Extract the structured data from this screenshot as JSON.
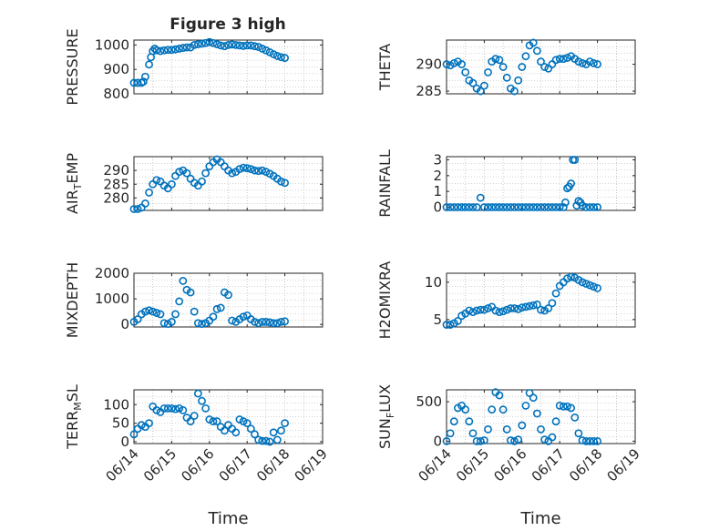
{
  "chart_data": [
    {
      "type": "scatter",
      "title": "Figure 3 high",
      "ylabel": "PRESSURE",
      "xlabel": "",
      "xlim": [
        0,
        5
      ],
      "ylim": [
        800,
        1020
      ],
      "yticks": [
        800,
        900,
        1000
      ],
      "x": [
        0.0,
        0.1,
        0.2,
        0.25,
        0.3,
        0.4,
        0.45,
        0.5,
        0.55,
        0.6,
        0.7,
        0.8,
        0.9,
        1.0,
        1.1,
        1.2,
        1.3,
        1.4,
        1.5,
        1.6,
        1.7,
        1.8,
        1.9,
        2.0,
        2.1,
        2.2,
        2.3,
        2.4,
        2.5,
        2.6,
        2.7,
        2.8,
        2.9,
        3.0,
        3.1,
        3.2,
        3.3,
        3.4,
        3.5,
        3.6,
        3.7,
        3.8,
        3.9,
        4.0
      ],
      "y": [
        845,
        845,
        845,
        850,
        870,
        920,
        950,
        975,
        985,
        978,
        975,
        978,
        980,
        980,
        982,
        985,
        988,
        990,
        990,
        1000,
        1003,
        1005,
        1008,
        1012,
        1008,
        1003,
        998,
        995,
        1000,
        1002,
        1000,
        998,
        996,
        998,
        998,
        995,
        992,
        985,
        978,
        970,
        962,
        955,
        950,
        947
      ]
    },
    {
      "type": "scatter",
      "ylabel": "THETA",
      "xlabel": "",
      "xlim": [
        0,
        5
      ],
      "ylim": [
        284.5,
        294.5
      ],
      "yticks": [
        285,
        290
      ],
      "x": [
        0.0,
        0.1,
        0.2,
        0.3,
        0.4,
        0.5,
        0.6,
        0.7,
        0.8,
        0.9,
        1.0,
        1.1,
        1.2,
        1.3,
        1.4,
        1.5,
        1.6,
        1.7,
        1.8,
        1.9,
        2.0,
        2.1,
        2.2,
        2.3,
        2.4,
        2.5,
        2.6,
        2.7,
        2.8,
        2.9,
        3.0,
        3.1,
        3.2,
        3.3,
        3.4,
        3.5,
        3.6,
        3.7,
        3.8,
        3.9,
        4.0
      ],
      "y": [
        290,
        289.8,
        290.2,
        290.5,
        290,
        288.5,
        287,
        286.5,
        285.5,
        285,
        286,
        288.5,
        290.5,
        291,
        290.8,
        289.5,
        287.5,
        285.5,
        285,
        287,
        289.5,
        291.5,
        293.5,
        294,
        292.5,
        290.5,
        289.5,
        289.2,
        290,
        290.8,
        291,
        291,
        291.2,
        291.5,
        291,
        290.5,
        290.2,
        290,
        290.5,
        290.2,
        290
      ]
    },
    {
      "type": "scatter",
      "ylabel": "AIR_TEMP",
      "xlabel": "",
      "xlim": [
        0,
        5
      ],
      "ylim": [
        275.5,
        295
      ],
      "yticks": [
        280,
        285,
        290
      ],
      "x": [
        0.0,
        0.1,
        0.2,
        0.3,
        0.4,
        0.5,
        0.6,
        0.7,
        0.8,
        0.9,
        1.0,
        1.1,
        1.2,
        1.3,
        1.4,
        1.5,
        1.6,
        1.7,
        1.8,
        1.9,
        2.0,
        2.1,
        2.2,
        2.3,
        2.4,
        2.5,
        2.6,
        2.7,
        2.8,
        2.9,
        3.0,
        3.1,
        3.2,
        3.3,
        3.4,
        3.5,
        3.6,
        3.7,
        3.8,
        3.9,
        4.0
      ],
      "y": [
        276,
        276,
        276.5,
        278,
        282,
        285,
        286.5,
        286,
        284.5,
        283.5,
        285,
        288,
        289.5,
        290,
        289,
        287,
        285.5,
        284.5,
        286,
        289,
        291.5,
        293,
        294,
        293,
        291.5,
        290,
        289,
        289.5,
        290.5,
        291,
        290.8,
        290.5,
        290,
        289.8,
        290,
        289.5,
        288.8,
        288,
        287,
        286,
        285.5
      ]
    },
    {
      "type": "scatter",
      "ylabel": "RAINFALL",
      "xlabel": "",
      "xlim": [
        0,
        5
      ],
      "ylim": [
        -0.2,
        3.2
      ],
      "yticks": [
        0,
        1,
        2,
        3
      ],
      "x": [
        0.0,
        0.1,
        0.2,
        0.3,
        0.4,
        0.5,
        0.6,
        0.7,
        0.8,
        0.9,
        1.0,
        1.1,
        1.2,
        1.3,
        1.4,
        1.5,
        1.6,
        1.7,
        1.8,
        1.9,
        2.0,
        2.1,
        2.2,
        2.3,
        2.4,
        2.5,
        2.6,
        2.7,
        2.8,
        2.9,
        3.0,
        3.1,
        3.15,
        3.2,
        3.25,
        3.3,
        3.35,
        3.4,
        3.45,
        3.5,
        3.55,
        3.6,
        3.7,
        3.8,
        3.9,
        4.0
      ],
      "y": [
        0,
        0,
        0,
        0,
        0,
        0,
        0,
        0,
        0,
        0.6,
        0,
        0,
        0,
        0,
        0,
        0,
        0,
        0,
        0,
        0,
        0,
        0,
        0,
        0,
        0,
        0,
        0,
        0,
        0,
        0,
        0,
        0,
        0.3,
        1.2,
        1.3,
        1.5,
        3.0,
        3.0,
        0.1,
        0.4,
        0.3,
        0.1,
        0,
        0,
        0,
        0
      ]
    },
    {
      "type": "scatter",
      "ylabel": "MIXDEPTH",
      "xlabel": "",
      "xlim": [
        0,
        5
      ],
      "ylim": [
        -100,
        2000
      ],
      "yticks": [
        0,
        1000,
        2000
      ],
      "x": [
        0.0,
        0.1,
        0.2,
        0.3,
        0.4,
        0.5,
        0.6,
        0.7,
        0.8,
        0.9,
        1.0,
        1.1,
        1.2,
        1.3,
        1.4,
        1.5,
        1.6,
        1.7,
        1.8,
        1.9,
        2.0,
        2.1,
        2.2,
        2.3,
        2.4,
        2.5,
        2.6,
        2.7,
        2.8,
        2.9,
        3.0,
        3.1,
        3.2,
        3.3,
        3.4,
        3.5,
        3.6,
        3.7,
        3.8,
        3.9,
        4.0
      ],
      "y": [
        100,
        200,
        400,
        500,
        550,
        500,
        450,
        400,
        50,
        20,
        100,
        400,
        900,
        1700,
        1350,
        1250,
        500,
        50,
        20,
        50,
        150,
        300,
        600,
        650,
        1250,
        1150,
        150,
        100,
        200,
        300,
        350,
        200,
        100,
        50,
        100,
        100,
        80,
        50,
        50,
        100,
        120
      ]
    },
    {
      "type": "scatter",
      "ylabel": "H2OMIXRA",
      "xlabel": "",
      "xlim": [
        0,
        5
      ],
      "ylim": [
        4,
        11.2
      ],
      "yticks": [
        5,
        10
      ],
      "x": [
        0.0,
        0.1,
        0.2,
        0.3,
        0.4,
        0.5,
        0.6,
        0.7,
        0.8,
        0.9,
        1.0,
        1.1,
        1.2,
        1.3,
        1.4,
        1.5,
        1.6,
        1.7,
        1.8,
        1.9,
        2.0,
        2.1,
        2.2,
        2.3,
        2.4,
        2.5,
        2.6,
        2.7,
        2.8,
        2.9,
        3.0,
        3.1,
        3.2,
        3.3,
        3.4,
        3.5,
        3.6,
        3.7,
        3.8,
        3.9,
        4.0
      ],
      "y": [
        4.3,
        4.3,
        4.5,
        4.8,
        5.5,
        5.8,
        6.2,
        6.0,
        6.2,
        6.3,
        6.3,
        6.5,
        6.7,
        6.2,
        6.0,
        6.1,
        6.3,
        6.5,
        6.5,
        6.4,
        6.6,
        6.7,
        6.8,
        6.9,
        7.0,
        6.3,
        6.2,
        6.5,
        7.2,
        8.5,
        9.5,
        10.0,
        10.5,
        10.7,
        10.6,
        10.3,
        10.0,
        9.8,
        9.6,
        9.4,
        9.2
      ]
    },
    {
      "type": "scatter",
      "ylabel": "TERR_MSL",
      "xlabel": "Time",
      "xlim": [
        0,
        5
      ],
      "ylim": [
        -5,
        140
      ],
      "yticks": [
        0,
        50,
        100
      ],
      "xticks": [
        0,
        1,
        2,
        3,
        4,
        5
      ],
      "xticklabels": [
        "06/14",
        "06/15",
        "06/16",
        "06/17",
        "06/18",
        "06/19"
      ],
      "x": [
        0.0,
        0.1,
        0.2,
        0.3,
        0.4,
        0.5,
        0.6,
        0.7,
        0.8,
        0.9,
        1.0,
        1.1,
        1.2,
        1.3,
        1.4,
        1.5,
        1.6,
        1.7,
        1.8,
        1.9,
        2.0,
        2.1,
        2.2,
        2.3,
        2.4,
        2.5,
        2.6,
        2.7,
        2.8,
        2.9,
        3.0,
        3.1,
        3.2,
        3.3,
        3.4,
        3.5,
        3.6,
        3.7,
        3.8,
        3.9,
        4.0
      ],
      "y": [
        20,
        35,
        45,
        40,
        50,
        95,
        85,
        80,
        90,
        90,
        90,
        88,
        90,
        85,
        65,
        55,
        70,
        130,
        110,
        90,
        60,
        55,
        55,
        40,
        30,
        45,
        35,
        25,
        60,
        55,
        50,
        35,
        20,
        5,
        2,
        2,
        0,
        25,
        5,
        30,
        50
      ]
    },
    {
      "type": "scatter",
      "ylabel": "SUN_FLUX",
      "xlabel": "Time",
      "xlim": [
        0,
        5
      ],
      "ylim": [
        -30,
        650
      ],
      "yticks": [
        0,
        500
      ],
      "xticks": [
        0,
        1,
        2,
        3,
        4,
        5
      ],
      "xticklabels": [
        "06/14",
        "06/15",
        "06/16",
        "06/17",
        "06/18",
        "06/19"
      ],
      "x": [
        0.0,
        0.1,
        0.2,
        0.3,
        0.4,
        0.5,
        0.6,
        0.7,
        0.8,
        0.9,
        1.0,
        1.1,
        1.2,
        1.3,
        1.4,
        1.5,
        1.6,
        1.7,
        1.8,
        1.9,
        2.0,
        2.1,
        2.2,
        2.3,
        2.4,
        2.5,
        2.6,
        2.7,
        2.8,
        2.9,
        3.0,
        3.1,
        3.2,
        3.3,
        3.4,
        3.5,
        3.6,
        3.7,
        3.8,
        3.9,
        4.0
      ],
      "y": [
        0,
        100,
        250,
        420,
        450,
        400,
        250,
        100,
        0,
        0,
        10,
        150,
        400,
        620,
        580,
        400,
        150,
        10,
        0,
        20,
        200,
        450,
        610,
        550,
        350,
        150,
        20,
        0,
        50,
        250,
        450,
        440,
        440,
        420,
        300,
        100,
        10,
        0,
        0,
        0,
        0
      ]
    }
  ],
  "colors": {
    "marker": "#0072bd",
    "axis": "#262626",
    "grid": "#a8a8a8"
  }
}
